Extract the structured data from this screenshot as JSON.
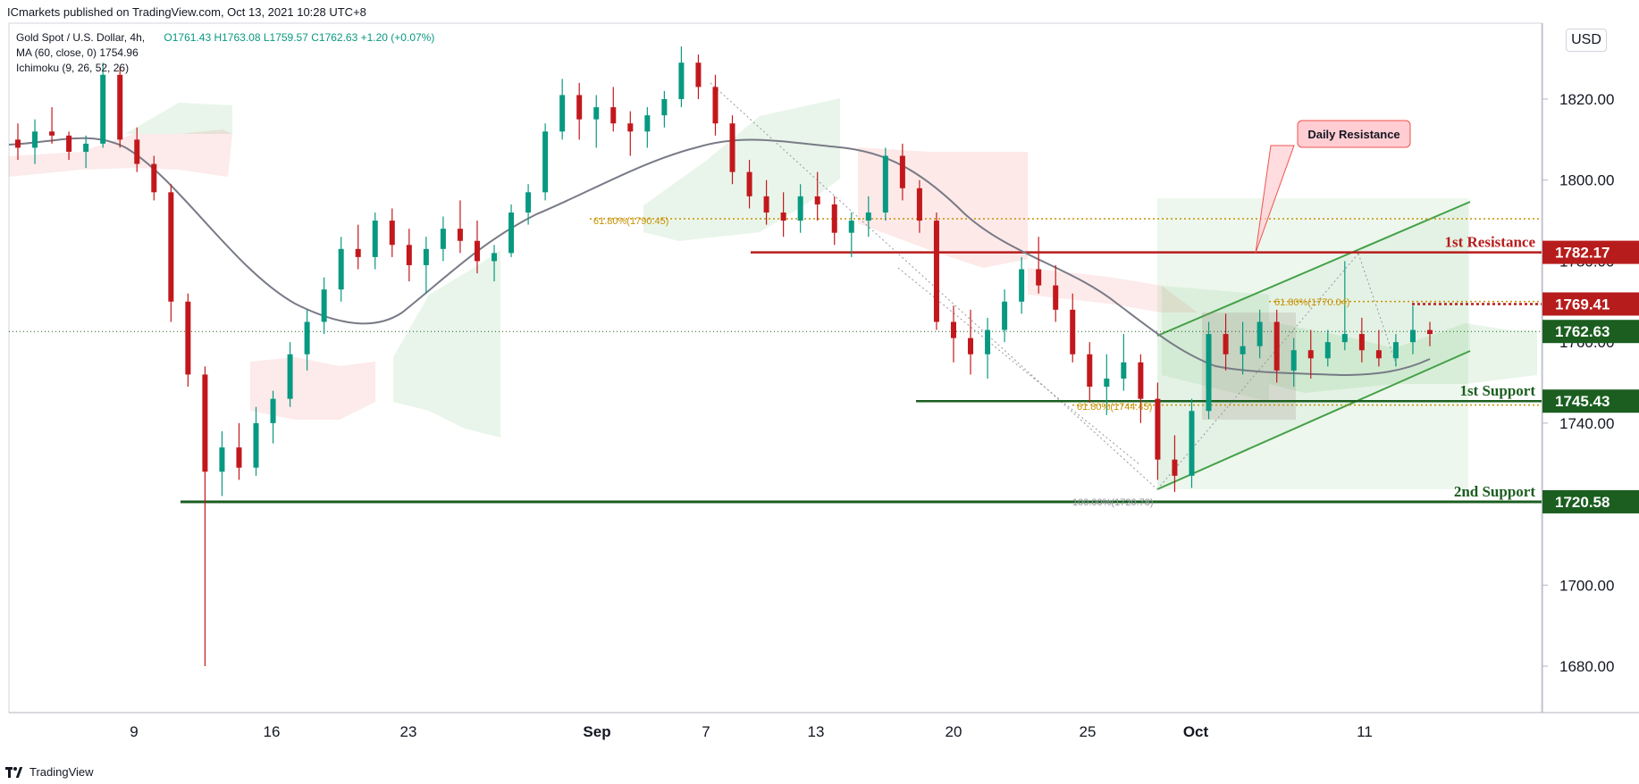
{
  "header": {
    "publisher": "ICmarkets published on TradingView.com, Oct 13, 2021 10:28 UTC+8"
  },
  "legend": {
    "symbol": "Gold Spot / U.S. Dollar, 4h,",
    "ohlc": "O1761.43  H1763.08  L1759.57  C1762.63  +1.20 (+0.07%)",
    "ma": "MA (60, close, 0)  1754.96",
    "ichimoku": "Ichimoku (9, 26, 52, 26)"
  },
  "currency_button": "USD",
  "footer": {
    "brand": "TradingView"
  },
  "colors": {
    "up": "#089981",
    "down": "#c2181c",
    "resistance": "#b71c1c",
    "support": "#1b5e20",
    "fib": "#c79100",
    "ma": "#787b86",
    "cloud_green": "#4caf50",
    "cloud_red": "#ef5350",
    "channel": "#43a047"
  },
  "chart_data": {
    "type": "candlestick",
    "symbol": "XAUUSD",
    "timeframe": "4h",
    "yaxis": {
      "min": 1670,
      "max": 1840,
      "ticks": [
        1680,
        1700,
        1720,
        1740,
        1760,
        1780,
        1800,
        1820
      ]
    },
    "tick_labels": [
      "1680.00",
      "1700.00",
      "1720.00",
      "1740.00",
      "1760.00",
      "1780.00",
      "1800.00",
      "1820.00"
    ],
    "x_labels": [
      "9",
      "16",
      "23",
      "Sep",
      "7",
      "13",
      "20",
      "25",
      "Oct",
      "11"
    ],
    "price_labels": [
      {
        "label": "1782.17",
        "value": 1782.17,
        "color": "#b71c1c"
      },
      {
        "label": "1769.41",
        "value": 1769.41,
        "color": "#b71c1c"
      },
      {
        "label": "1762.63",
        "value": 1762.63,
        "color": "#1b5e20"
      },
      {
        "label": "1745.43",
        "value": 1745.43,
        "color": "#1b5e20"
      },
      {
        "label": "1720.58",
        "value": 1720.58,
        "color": "#1b5e20"
      }
    ],
    "levels": [
      {
        "name": "1st Resistance",
        "value": 1782.17,
        "color": "#b71c1c"
      },
      {
        "name": "1st Support",
        "value": 1745.43,
        "color": "#1b5e20"
      },
      {
        "name": "2nd Support",
        "value": 1720.58,
        "color": "#1b5e20"
      }
    ],
    "fib_labels": [
      {
        "text": "61.80%(1790.45)",
        "value": 1790.45
      },
      {
        "text": "61.80%(1770.04)",
        "value": 1770.04
      },
      {
        "text": "61.80%(1744.45)",
        "value": 1744.45
      },
      {
        "text": "100.00%(1720.78)",
        "value": 1720.78
      }
    ],
    "callout": "Daily Resistance",
    "candles_ohlc": [
      [
        1810,
        1814,
        1805,
        1808
      ],
      [
        1808,
        1815,
        1804,
        1812
      ],
      [
        1812,
        1818,
        1809,
        1811
      ],
      [
        1811,
        1812,
        1805,
        1807
      ],
      [
        1807,
        1811,
        1803,
        1809
      ],
      [
        1809,
        1829,
        1808,
        1826
      ],
      [
        1826,
        1828,
        1808,
        1810
      ],
      [
        1810,
        1813,
        1802,
        1804
      ],
      [
        1804,
        1806,
        1795,
        1797
      ],
      [
        1797,
        1799,
        1765,
        1770
      ],
      [
        1770,
        1772,
        1749,
        1752
      ],
      [
        1752,
        1754,
        1680,
        1728
      ],
      [
        1728,
        1738,
        1722,
        1734
      ],
      [
        1734,
        1740,
        1726,
        1729
      ],
      [
        1729,
        1744,
        1727,
        1740
      ],
      [
        1740,
        1748,
        1735,
        1746
      ],
      [
        1746,
        1760,
        1744,
        1757
      ],
      [
        1757,
        1768,
        1753,
        1765
      ],
      [
        1765,
        1776,
        1762,
        1773
      ],
      [
        1773,
        1786,
        1770,
        1783
      ],
      [
        1783,
        1789,
        1778,
        1781
      ],
      [
        1781,
        1792,
        1778,
        1790
      ],
      [
        1790,
        1793,
        1781,
        1784
      ],
      [
        1784,
        1788,
        1775,
        1779
      ],
      [
        1779,
        1786,
        1772,
        1783
      ],
      [
        1783,
        1791,
        1780,
        1788
      ],
      [
        1788,
        1795,
        1782,
        1785
      ],
      [
        1785,
        1790,
        1777,
        1780
      ],
      [
        1780,
        1784,
        1775,
        1782
      ],
      [
        1782,
        1794,
        1781,
        1792
      ],
      [
        1792,
        1799,
        1789,
        1797
      ],
      [
        1797,
        1814,
        1795,
        1812
      ],
      [
        1812,
        1825,
        1810,
        1821
      ],
      [
        1821,
        1824,
        1810,
        1815
      ],
      [
        1815,
        1821,
        1808,
        1818
      ],
      [
        1818,
        1823,
        1812,
        1814
      ],
      [
        1814,
        1817,
        1806,
        1812
      ],
      [
        1812,
        1818,
        1808,
        1816
      ],
      [
        1816,
        1822,
        1813,
        1820
      ],
      [
        1820,
        1833,
        1818,
        1829
      ],
      [
        1829,
        1831,
        1820,
        1823
      ],
      [
        1823,
        1826,
        1811,
        1814
      ],
      [
        1814,
        1816,
        1799,
        1802
      ],
      [
        1802,
        1805,
        1793,
        1796
      ],
      [
        1796,
        1800,
        1789,
        1792
      ],
      [
        1792,
        1797,
        1786,
        1790
      ],
      [
        1790,
        1799,
        1787,
        1796
      ],
      [
        1796,
        1802,
        1790,
        1794
      ],
      [
        1794,
        1796,
        1784,
        1787
      ],
      [
        1787,
        1792,
        1781,
        1790
      ],
      [
        1790,
        1796,
        1786,
        1792
      ],
      [
        1792,
        1808,
        1790,
        1806
      ],
      [
        1806,
        1809,
        1795,
        1798
      ],
      [
        1798,
        1800,
        1787,
        1790
      ],
      [
        1790,
        1792,
        1763,
        1765
      ],
      [
        1765,
        1769,
        1755,
        1761
      ],
      [
        1761,
        1768,
        1752,
        1757
      ],
      [
        1757,
        1766,
        1751,
        1763
      ],
      [
        1763,
        1773,
        1760,
        1770
      ],
      [
        1770,
        1781,
        1767,
        1778
      ],
      [
        1778,
        1786,
        1772,
        1774
      ],
      [
        1774,
        1779,
        1765,
        1768
      ],
      [
        1768,
        1772,
        1755,
        1757
      ],
      [
        1757,
        1760,
        1745,
        1749
      ],
      [
        1749,
        1757,
        1742,
        1751
      ],
      [
        1751,
        1762,
        1748,
        1755
      ],
      [
        1755,
        1757,
        1740,
        1746
      ],
      [
        1746,
        1750,
        1726,
        1731
      ],
      [
        1731,
        1737,
        1723,
        1727
      ],
      [
        1727,
        1746,
        1724,
        1743
      ],
      [
        1743,
        1765,
        1741,
        1762
      ],
      [
        1762,
        1767,
        1753,
        1757
      ],
      [
        1757,
        1765,
        1752,
        1759
      ],
      [
        1759,
        1768,
        1756,
        1765
      ],
      [
        1765,
        1768,
        1750,
        1753
      ],
      [
        1753,
        1761,
        1749,
        1758
      ],
      [
        1758,
        1763,
        1751,
        1756
      ],
      [
        1756,
        1763,
        1754,
        1760
      ],
      [
        1760,
        1780,
        1758,
        1762
      ],
      [
        1762,
        1766,
        1755,
        1758
      ],
      [
        1758,
        1763,
        1754,
        1756
      ],
      [
        1756,
        1762,
        1754,
        1760
      ],
      [
        1760,
        1769,
        1757,
        1763
      ],
      [
        1763,
        1765,
        1759,
        1762
      ]
    ]
  }
}
